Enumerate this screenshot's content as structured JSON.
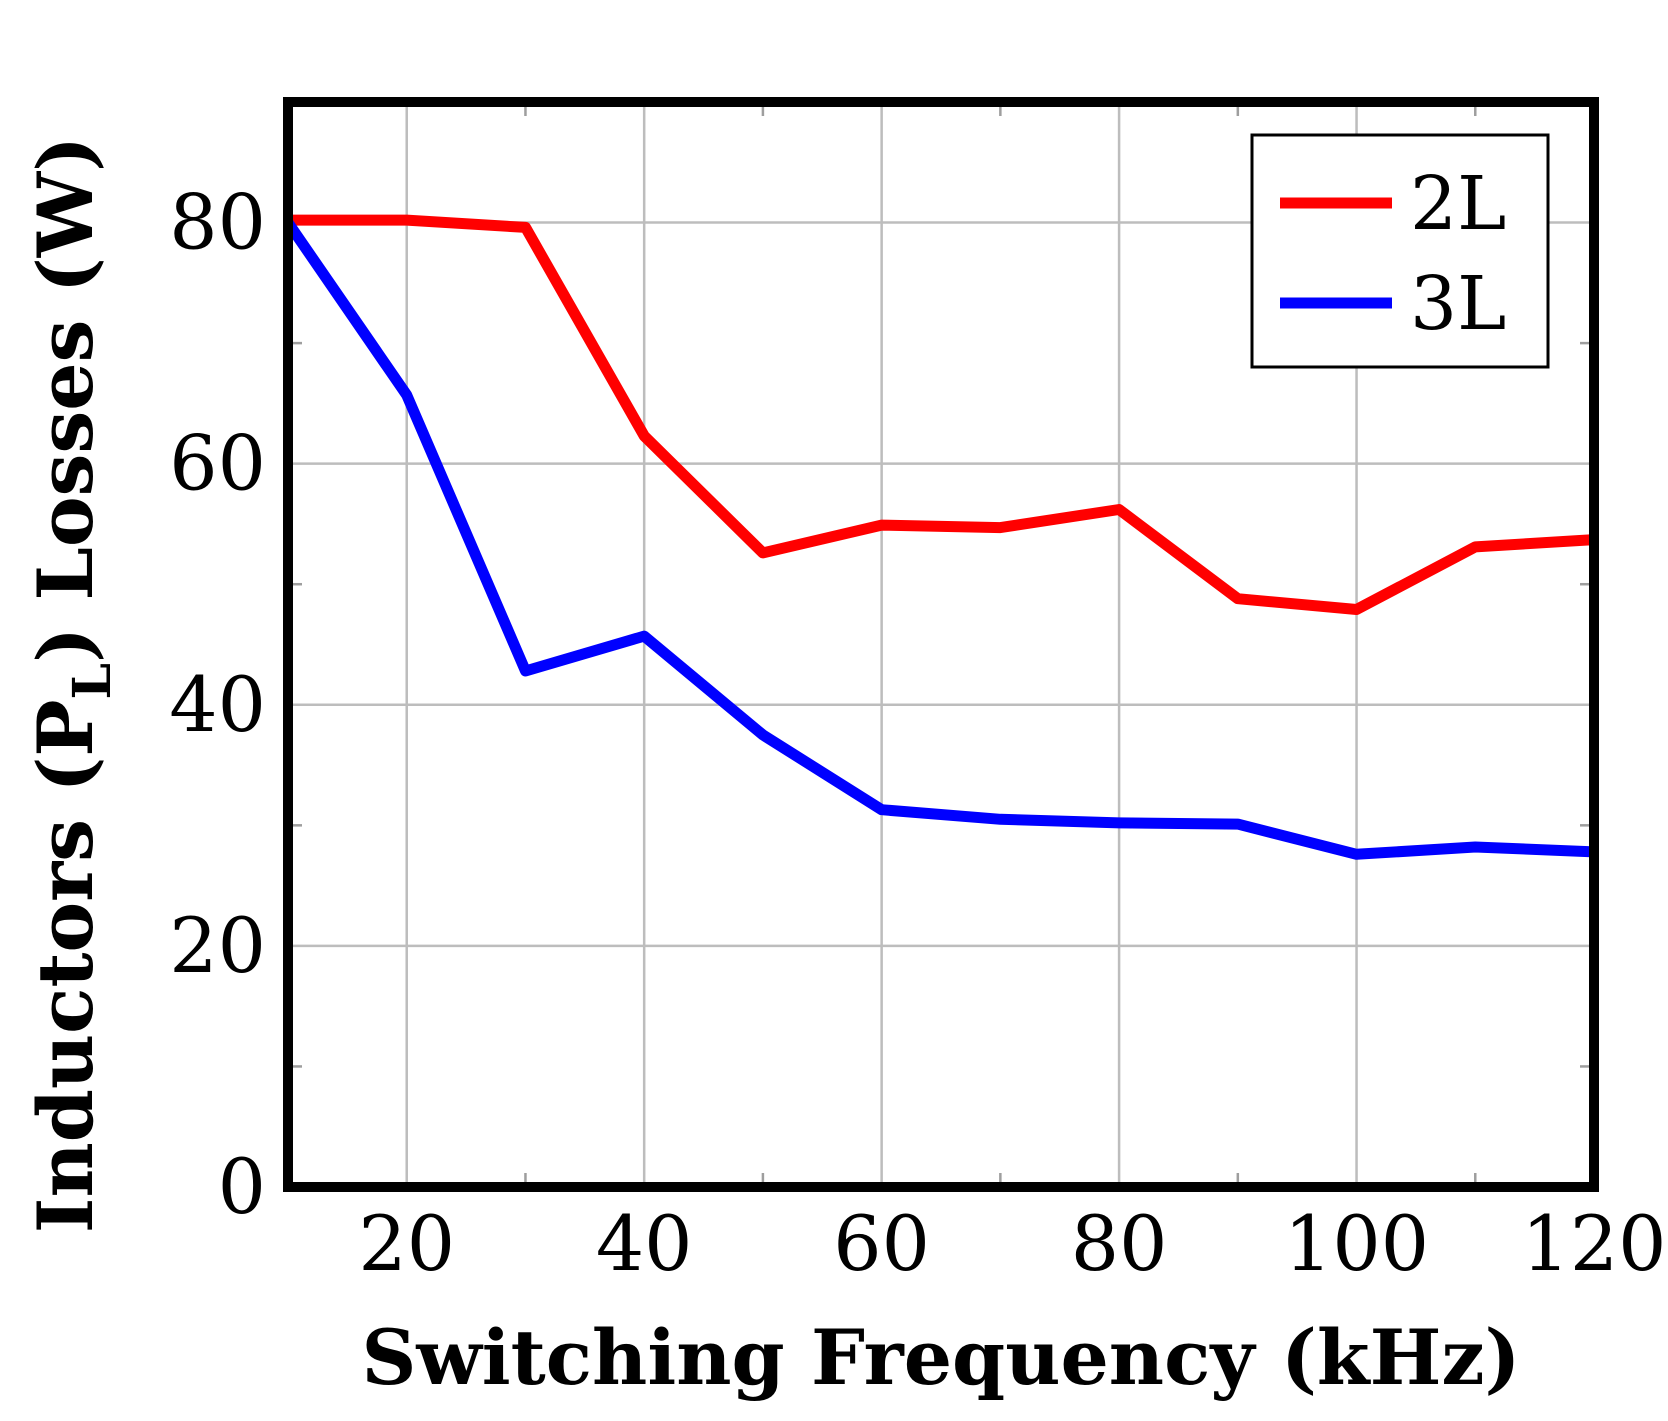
{
  "chart_data": {
    "type": "line",
    "title": "",
    "xlabel": "Switching Frequency (kHz)",
    "ylabel_parts": {
      "before": "Inductors (P",
      "subscript": "L",
      "after": ") Losses (W)"
    },
    "xlim": [
      10,
      120
    ],
    "ylim": [
      0,
      90
    ],
    "grid": true,
    "legend_position": "top-right",
    "x_ticks": [
      20,
      40,
      60,
      80,
      100,
      120
    ],
    "x_tick_labels": [
      "20",
      "40",
      "60",
      "80",
      "100",
      "120"
    ],
    "x_minor_ticks": [
      30,
      50,
      70,
      90,
      110
    ],
    "y_ticks": [
      0,
      20,
      40,
      60,
      80
    ],
    "y_tick_labels": [
      "0",
      "20",
      "40",
      "60",
      "80"
    ],
    "y_minor_ticks": [
      10,
      30,
      50,
      70
    ],
    "x": [
      10,
      20,
      30,
      40,
      50,
      60,
      70,
      80,
      90,
      100,
      110,
      120
    ],
    "series": [
      {
        "name": "2L",
        "color": "#ff0000",
        "values": [
          80.2,
          80.2,
          79.6,
          62.3,
          52.6,
          54.9,
          54.7,
          56.2,
          48.8,
          47.9,
          53.1,
          53.7
        ]
      },
      {
        "name": "3L",
        "color": "#0000ff",
        "values": [
          80.0,
          65.7,
          42.8,
          45.7,
          37.5,
          31.3,
          30.5,
          30.2,
          30.1,
          27.6,
          28.2,
          27.8
        ]
      }
    ]
  }
}
